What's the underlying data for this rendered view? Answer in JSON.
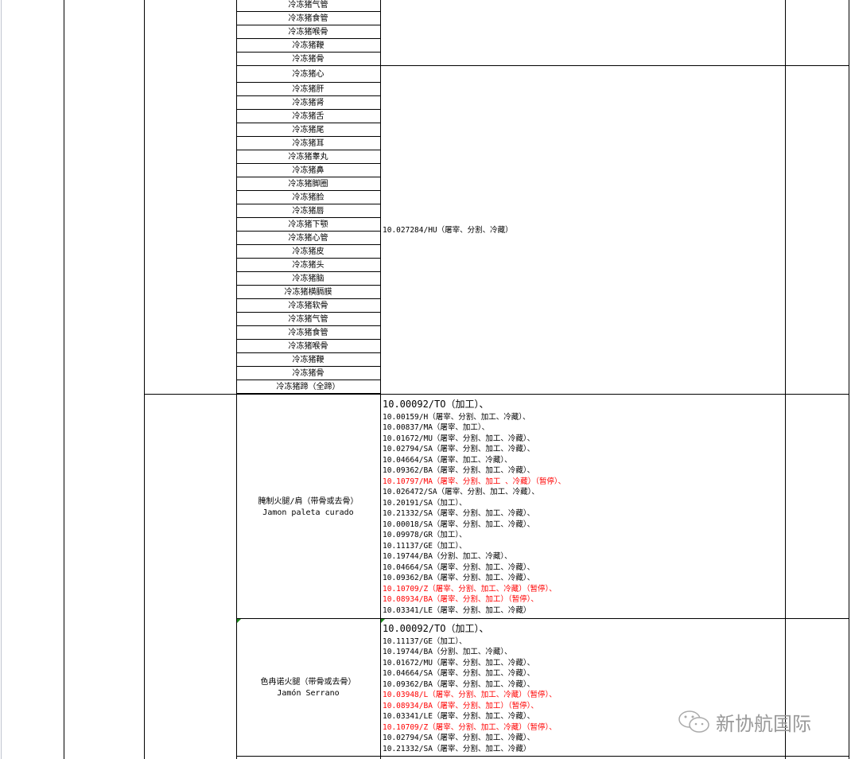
{
  "block1": {
    "items": [
      "冷冻猪气管",
      "冷冻猪食管",
      "冷冻猪喉骨",
      "冷冻猪鞭",
      "冷冻猪骨"
    ]
  },
  "block2": {
    "items": [
      "冷冻猪心",
      "冷冻猪肝",
      "冷冻猪肾",
      "冷冻猪舌",
      "冷冻猪尾",
      "冷冻猪耳",
      "冷冻猪睾丸",
      "冷冻猪鼻",
      "冷冻猪脚圈",
      "冷冻猪脸",
      "冷冻猪唇",
      "冷冻猪下颚",
      "冷冻猪心管",
      "冷冻猪皮",
      "冷冻猪头",
      "冷冻猪脑",
      "冷冻猪横膈膜",
      "冷冻猪软骨",
      "冷冻猪气管",
      "冷冻猪食管",
      "冷冻猪喉骨",
      "冷冻猪鞭",
      "冷冻猪骨",
      "冷冻猪蹄（全蹄）"
    ],
    "cert": "10.027284/HU（屠宰、分割、冷藏）"
  },
  "block3": {
    "product_cn": "腌制火腿/肩（带骨或去骨）",
    "product_es": "Jamon paleta curado",
    "certs": [
      {
        "text": "10.00092/TO（加工）、",
        "red": false
      },
      {
        "text": "10.00159/H（屠宰、分割、加工、冷藏）、",
        "red": false
      },
      {
        "text": "10.00837/MA（屠宰、加工）、",
        "red": false
      },
      {
        "text": "10.01672/MU（屠宰、分割、加工、冷藏）、",
        "red": false
      },
      {
        "text": "10.02794/SA（屠宰、分割、加工、冷藏）、",
        "red": false
      },
      {
        "text": "10.04664/SA（屠宰、加工、冷藏）、",
        "red": false
      },
      {
        "text": "10.09362/BA（屠宰、分割、加工、冷藏）、",
        "red": false
      },
      {
        "text": "10.10797/MA（屠宰、分割、加工 、冷藏）（暂停）、",
        "red": true
      },
      {
        "text": "10.026472/SA（屠宰、分割、加工、冷藏）、",
        "red": false
      },
      {
        "text": "10.20191/SA（加工）、",
        "red": false
      },
      {
        "text": "10.21332/SA（屠宰、分割、加工、冷藏）、",
        "red": false
      },
      {
        "text": "10.00018/SA（屠宰、分割、加工、冷藏）、",
        "red": false
      },
      {
        "text": "10.09978/GR（加工）、",
        "red": false
      },
      {
        "text": "10.11137/GE（加工）、",
        "red": false
      },
      {
        "text": "10.19744/BA（分割、加工、冷藏）、",
        "red": false
      },
      {
        "text": "10.04664/SA（屠宰、分割、加工、冷藏）、",
        "red": false
      },
      {
        "text": "10.09362/BA（屠宰、分割、加工、冷藏）、",
        "red": false
      },
      {
        "text": "10.10709/Z（屠宰、分割、加工、冷藏）（暂停）、",
        "red": true
      },
      {
        "text": "10.08934/BA（屠宰、分割、加工）（暂停）、",
        "red": true
      },
      {
        "text": "10.03341/LE（屠宰、分割、加工、冷藏）",
        "red": false
      }
    ]
  },
  "block4": {
    "product_cn": "色冉诺火腿（带骨或去骨）",
    "product_es": "Jamón Serrano",
    "certs": [
      {
        "text": "10.00092/TO（加工）、",
        "red": false
      },
      {
        "text": "10.11137/GE（加工）、",
        "red": false
      },
      {
        "text": "10.19744/BA（分割、加工、冷藏）、",
        "red": false
      },
      {
        "text": "10.01672/MU（屠宰、分割、加工、冷藏）、",
        "red": false
      },
      {
        "text": "10.04664/SA（屠宰、分割、加工、冷藏）、",
        "red": false
      },
      {
        "text": "10.09362/BA（屠宰、分割、加工、冷藏）、",
        "red": false
      },
      {
        "text": "10.03948/L（屠宰、分割、加工、冷藏）（暂停）、",
        "red": true
      },
      {
        "text": "10.08934/BA（屠宰、分割、加工）（暂停）、",
        "red": true
      },
      {
        "text": "10.03341/LE（屠宰、分割、加工、冷藏）、",
        "red": false
      },
      {
        "text": "10.10709/Z（屠宰、分割、加工、冷藏）（暂停）、",
        "red": true
      },
      {
        "text": "10.02794/SA（屠宰、分割、加工、冷藏）、",
        "red": false
      },
      {
        "text": "10.21332/SA（屠宰、分割、加工、冷藏）",
        "red": false
      }
    ]
  },
  "watermark": {
    "text": "新协航国际",
    "icon": "wechat-icon"
  },
  "colors": {
    "red": "#ff0000",
    "grid": "#c0c4d0"
  }
}
